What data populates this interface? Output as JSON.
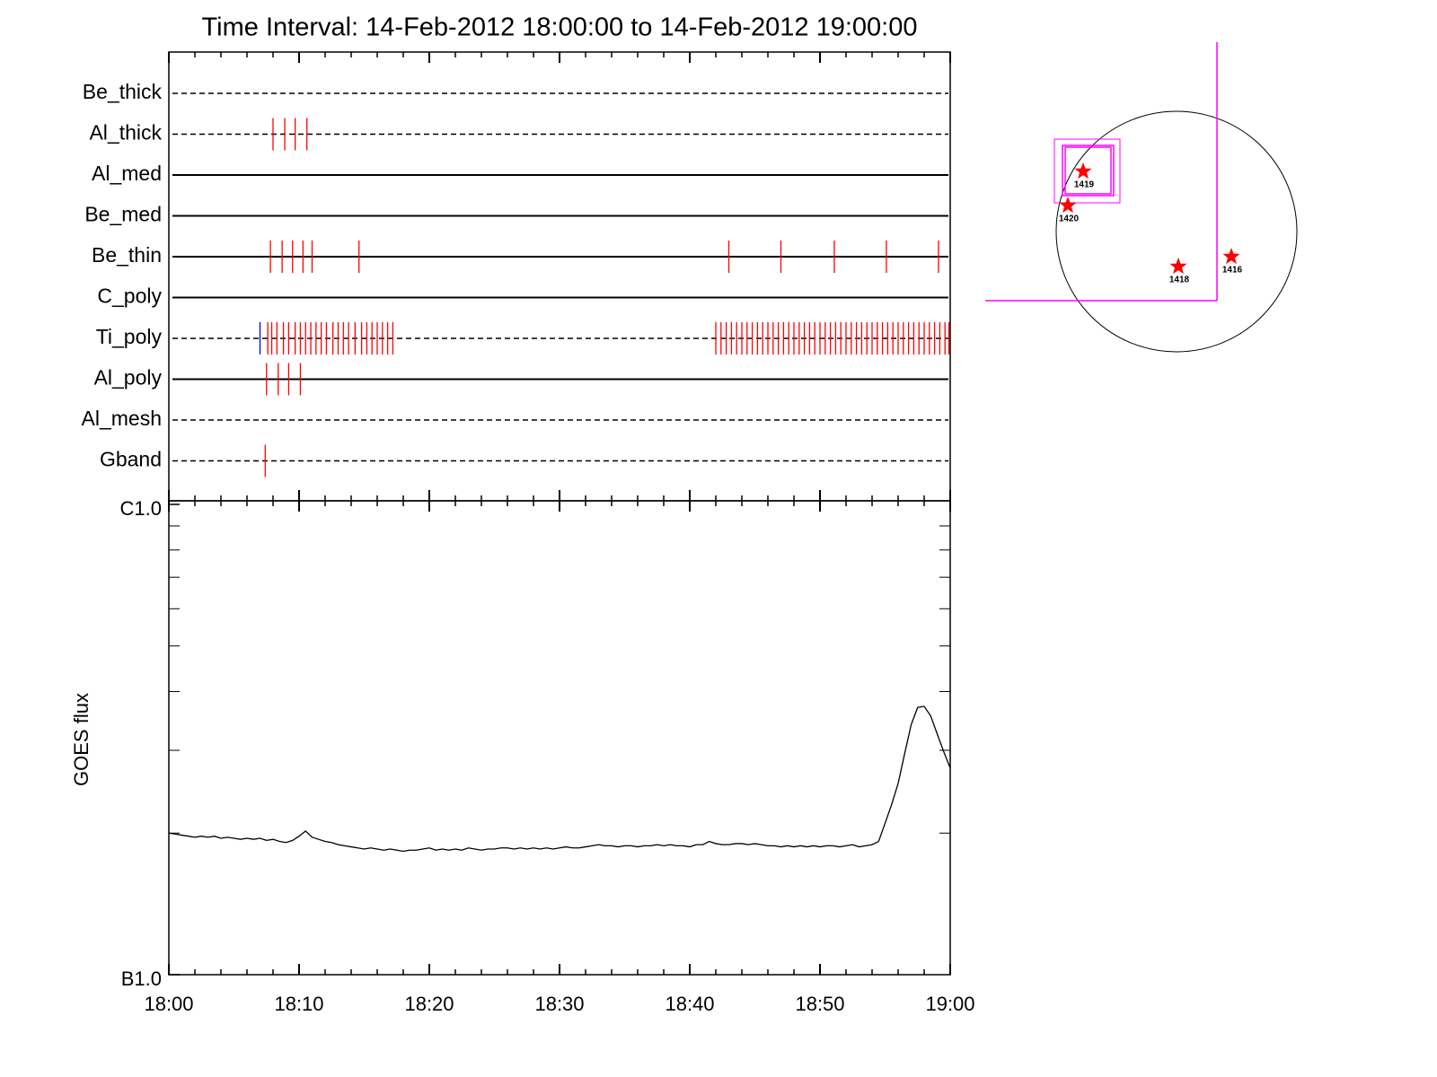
{
  "title": "Time Interval: 14-Feb-2012 18:00:00 to 14-Feb-2012 19:00:00",
  "chart_data": [
    {
      "type": "timeline",
      "categories": [
        "Be_thick",
        "Al_thick",
        "Al_med",
        "Be_med",
        "Be_thin",
        "C_poly",
        "Ti_poly",
        "Al_poly",
        "Al_mesh",
        "Gband"
      ],
      "line_styles": [
        "dashed",
        "dashed",
        "solid",
        "solid",
        "solid",
        "solid",
        "dashed",
        "solid",
        "dashed",
        "dashed"
      ],
      "series": [
        {
          "color": "#ff0000",
          "values": [
            [],
            [
              8.0,
              8.9,
              9.7,
              10.6
            ],
            [],
            [],
            [
              7.8,
              8.7,
              9.5,
              10.3,
              11.0,
              14.6,
              43.0,
              47.0,
              51.1,
              55.1,
              59.1
            ],
            [],
            [
              7.6,
              7.9,
              8.3,
              8.8,
              9.2,
              9.7,
              10.1,
              10.5,
              10.9,
              11.3,
              11.7,
              12.1,
              12.6,
              13.0,
              13.4,
              13.8,
              14.3,
              14.8,
              15.2,
              15.6,
              16.0,
              16.4,
              16.8,
              17.2,
              42.0,
              42.4,
              42.8,
              43.2,
              43.6,
              44.0,
              44.4,
              44.8,
              45.2,
              45.6,
              46.0,
              46.4,
              46.8,
              47.2,
              47.6,
              48.0,
              48.4,
              48.8,
              49.2,
              49.6,
              50.0,
              50.4,
              50.8,
              51.2,
              51.6,
              52.0,
              52.4,
              52.8,
              53.2,
              53.6,
              54.0,
              54.4,
              54.8,
              55.2,
              55.6,
              56.0,
              56.4,
              56.8,
              57.2,
              57.6,
              58.0,
              58.4,
              58.8,
              59.2,
              59.6,
              59.9
            ],
            [
              7.5,
              8.4,
              9.2,
              10.1
            ],
            [],
            [
              7.4
            ]
          ]
        },
        {
          "color": "#0000ff",
          "values": [
            [],
            [],
            [],
            [],
            [],
            [],
            [
              7.0
            ],
            [],
            [],
            []
          ]
        }
      ],
      "xlim": [
        0,
        60
      ],
      "xticks": [
        0,
        10,
        20,
        30,
        40,
        50,
        60
      ],
      "xminorticks": [
        2,
        4,
        6,
        8,
        12,
        14,
        16,
        18,
        22,
        24,
        26,
        28,
        32,
        34,
        36,
        38,
        42,
        44,
        46,
        48,
        52,
        54,
        56,
        58
      ]
    },
    {
      "type": "line",
      "ylabel": "GOES flux",
      "color": "#000000",
      "ylog": true,
      "xlim": [
        0,
        60
      ],
      "xticks": [
        {
          "value": 0,
          "label": "18:00"
        },
        {
          "value": 10,
          "label": "18:10"
        },
        {
          "value": 20,
          "label": "18:20"
        },
        {
          "value": 30,
          "label": "18:30"
        },
        {
          "value": 40,
          "label": "18:40"
        },
        {
          "value": 50,
          "label": "18:50"
        },
        {
          "value": 60,
          "label": "19:00"
        }
      ],
      "xminorticks": [
        2,
        4,
        6,
        8,
        12,
        14,
        16,
        18,
        22,
        24,
        26,
        28,
        32,
        34,
        36,
        38,
        42,
        44,
        46,
        48,
        52,
        54,
        56,
        58
      ],
      "ylim": [
        1e-07,
        1e-06
      ],
      "yticks": [
        {
          "value": 1e-07,
          "label": "B1.0"
        },
        {
          "value": 1e-06,
          "label": "C1.0"
        }
      ],
      "yminorticks": [
        2e-07,
        3e-07,
        4e-07,
        5e-07,
        6e-07,
        7e-07,
        8e-07,
        9e-07
      ],
      "x": [
        0,
        0.5,
        1,
        1.5,
        2,
        2.5,
        3,
        3.5,
        4,
        4.5,
        5,
        5.5,
        6,
        6.5,
        7,
        7.5,
        8,
        8.5,
        9,
        9.5,
        10,
        10.5,
        11,
        11.5,
        12,
        12.5,
        13,
        13.5,
        14,
        14.5,
        15,
        15.5,
        16,
        16.5,
        17,
        17.5,
        18,
        18.5,
        19,
        19.5,
        20,
        20.5,
        21,
        21.5,
        22,
        22.5,
        23,
        23.5,
        24,
        24.5,
        25,
        25.5,
        26,
        26.5,
        27,
        27.5,
        28,
        28.5,
        29,
        29.5,
        30,
        30.5,
        31,
        31.5,
        32,
        32.5,
        33,
        33.5,
        34,
        34.5,
        35,
        35.5,
        36,
        36.5,
        37,
        37.5,
        38,
        38.5,
        39,
        39.5,
        40,
        40.5,
        41,
        41.5,
        42,
        42.5,
        43,
        43.5,
        44,
        44.5,
        45,
        45.5,
        46,
        46.5,
        47,
        47.5,
        48,
        48.5,
        49,
        49.5,
        50,
        50.5,
        51,
        51.5,
        52,
        52.5,
        53,
        53.5,
        54,
        54.5,
        55,
        55.5,
        56,
        56.5,
        57,
        57.5,
        58,
        58.5,
        59,
        59.5,
        60
      ],
      "values": [
        2e-07,
        1.99e-07,
        1.98e-07,
        1.97e-07,
        1.96e-07,
        1.97e-07,
        1.96e-07,
        1.97e-07,
        1.95e-07,
        1.96e-07,
        1.95e-07,
        1.94e-07,
        1.95e-07,
        1.94e-07,
        1.95e-07,
        1.93e-07,
        1.94e-07,
        1.92e-07,
        1.91e-07,
        1.93e-07,
        1.97e-07,
        2.02e-07,
        1.96e-07,
        1.94e-07,
        1.92e-07,
        1.91e-07,
        1.89e-07,
        1.88e-07,
        1.87e-07,
        1.86e-07,
        1.85e-07,
        1.86e-07,
        1.85e-07,
        1.84e-07,
        1.85e-07,
        1.84e-07,
        1.83e-07,
        1.84e-07,
        1.84e-07,
        1.85e-07,
        1.86e-07,
        1.84e-07,
        1.85e-07,
        1.84e-07,
        1.85e-07,
        1.84e-07,
        1.86e-07,
        1.85e-07,
        1.84e-07,
        1.85e-07,
        1.85e-07,
        1.86e-07,
        1.86e-07,
        1.85e-07,
        1.86e-07,
        1.85e-07,
        1.86e-07,
        1.85e-07,
        1.86e-07,
        1.85e-07,
        1.86e-07,
        1.87e-07,
        1.86e-07,
        1.86e-07,
        1.87e-07,
        1.88e-07,
        1.89e-07,
        1.88e-07,
        1.88e-07,
        1.87e-07,
        1.88e-07,
        1.88e-07,
        1.87e-07,
        1.88e-07,
        1.88e-07,
        1.89e-07,
        1.88e-07,
        1.89e-07,
        1.88e-07,
        1.88e-07,
        1.87e-07,
        1.89e-07,
        1.89e-07,
        1.92e-07,
        1.9e-07,
        1.89e-07,
        1.89e-07,
        1.9e-07,
        1.9e-07,
        1.89e-07,
        1.9e-07,
        1.89e-07,
        1.88e-07,
        1.88e-07,
        1.87e-07,
        1.88e-07,
        1.87e-07,
        1.88e-07,
        1.87e-07,
        1.88e-07,
        1.87e-07,
        1.88e-07,
        1.88e-07,
        1.87e-07,
        1.88e-07,
        1.89e-07,
        1.87e-07,
        1.88e-07,
        1.89e-07,
        1.92e-07,
        2.1e-07,
        2.3e-07,
        2.55e-07,
        2.95e-07,
        3.4e-07,
        3.7e-07,
        3.72e-07,
        3.55e-07,
        3.25e-07,
        2.98e-07,
        2.75e-07
      ]
    }
  ],
  "disk_map": {
    "region_labels": [
      "1419",
      "1420",
      "1418",
      "1416"
    ]
  }
}
